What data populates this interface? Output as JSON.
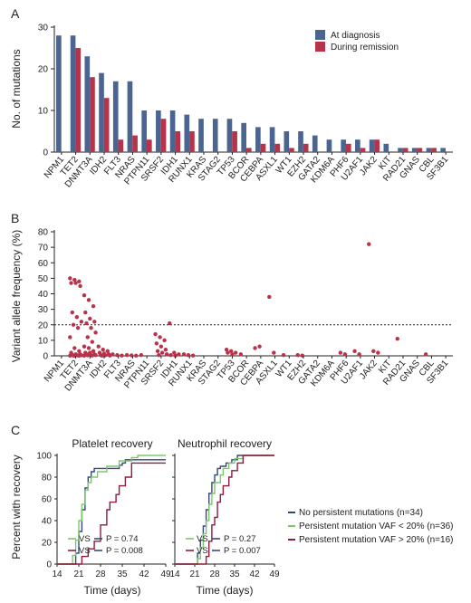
{
  "chart_data": [
    {
      "type": "bar",
      "panel_label": "A",
      "ylabel": "No. of mutations",
      "ylim": [
        0,
        30
      ],
      "yticks": [
        0,
        10,
        20,
        30
      ],
      "categories": [
        "NPM1",
        "TET2",
        "DNMT3A",
        "IDH2",
        "FLT3",
        "NRAS",
        "PTPN11",
        "SRSF2",
        "IDH1",
        "RUNX1",
        "KRAS",
        "STAG2",
        "TP53",
        "BCOR",
        "CEBPA",
        "ASXL1",
        "WT1",
        "EZH2",
        "GATA2",
        "KDM6A",
        "PHF6",
        "U2AF1",
        "JAK2",
        "KIT",
        "RAD21",
        "GNAS",
        "CBL",
        "SF3B1"
      ],
      "series": [
        {
          "name": "At diagnosis",
          "color": "#4a6590",
          "values": [
            28,
            28,
            23,
            19,
            17,
            17,
            10,
            10,
            10,
            9,
            8,
            8,
            8,
            7,
            6,
            6,
            5,
            5,
            4,
            3,
            3,
            3,
            3,
            2,
            1,
            1,
            1,
            1
          ]
        },
        {
          "name": "During remission",
          "color": "#b8334a",
          "values": [
            0,
            25,
            18,
            13,
            3,
            4,
            3,
            8,
            5,
            5,
            0,
            0,
            5,
            1,
            2,
            2,
            1,
            2,
            0,
            0,
            2,
            1,
            3,
            0,
            1,
            1,
            1,
            0
          ]
        }
      ],
      "legend_position": "top-right"
    },
    {
      "type": "scatter",
      "panel_label": "B",
      "ylabel": "Variant allele frequency (%)",
      "ylim": [
        0,
        80
      ],
      "yticks": [
        0,
        10,
        20,
        30,
        40,
        50,
        60,
        70,
        80
      ],
      "threshold": 20,
      "color": "#b8334a",
      "categories": [
        "NPM1",
        "TET2",
        "DNMT3A",
        "IDH2",
        "FLT3",
        "NRAS",
        "PTPN11",
        "SRSF2",
        "IDH1",
        "RUNX1",
        "KRAS",
        "STAG2",
        "TP53",
        "BCOR",
        "CEBPA",
        "ASXL1",
        "WT1",
        "EZH2",
        "GATA2",
        "KDM6A",
        "PHF6",
        "U2AF1",
        "JAK2",
        "KIT",
        "RAD21",
        "GNAS",
        "CBL",
        "SF3B1"
      ],
      "points": [
        {
          "cat": "TET2",
          "values": [
            50,
            49,
            48,
            47,
            47,
            45,
            28,
            25,
            22,
            20,
            18,
            12,
            5,
            3,
            2,
            1,
            1,
            0.5,
            0.5,
            0.3,
            0.2,
            0.2,
            0.1,
            0.1,
            0.1
          ]
        },
        {
          "cat": "DNMT3A",
          "values": [
            39,
            36,
            32,
            28,
            24,
            22,
            21,
            18,
            15,
            12,
            9,
            6,
            5,
            3,
            2,
            2,
            1,
            1,
            0.5,
            0.5,
            0.3,
            0.2,
            0.1
          ]
        },
        {
          "cat": "IDH2",
          "values": [
            6,
            4,
            3,
            2,
            1.5,
            1,
            0.5,
            0.3,
            0.2,
            0.1
          ]
        },
        {
          "cat": "FLT3",
          "values": [
            1,
            0.5,
            0.2
          ]
        },
        {
          "cat": "NRAS",
          "values": [
            0.5,
            0.3,
            0.1
          ]
        },
        {
          "cat": "PTPN11",
          "values": [
            0.5
          ]
        },
        {
          "cat": "SRSF2",
          "values": [
            14,
            12,
            10,
            8,
            6,
            4,
            3,
            2,
            1,
            0.5
          ]
        },
        {
          "cat": "IDH1",
          "values": [
            21,
            2,
            1,
            0.5,
            0.2
          ]
        },
        {
          "cat": "RUNX1",
          "values": [
            1,
            0.5,
            0.2
          ]
        },
        {
          "cat": "TP53",
          "values": [
            4,
            3,
            2,
            2,
            1
          ]
        },
        {
          "cat": "BCOR",
          "values": [
            1
          ]
        },
        {
          "cat": "CEBPA",
          "values": [
            5,
            6
          ]
        },
        {
          "cat": "ASXL1",
          "values": [
            38,
            2
          ]
        },
        {
          "cat": "WT1",
          "values": [
            0.5
          ]
        },
        {
          "cat": "EZH2",
          "values": [
            0.5,
            0.2
          ]
        },
        {
          "cat": "PHF6",
          "values": [
            2,
            1
          ]
        },
        {
          "cat": "U2AF1",
          "values": [
            3,
            1
          ]
        },
        {
          "cat": "JAK2",
          "values": [
            72,
            3,
            2
          ]
        },
        {
          "cat": "RAD21",
          "values": [
            11
          ]
        },
        {
          "cat": "CBL",
          "values": [
            1
          ]
        }
      ]
    },
    {
      "type": "line",
      "panel_label": "C",
      "title": "Platelet recovery",
      "xlabel": "Time (days)",
      "ylabel": "Percent with recovery",
      "xlim": [
        14,
        49
      ],
      "ylim": [
        0,
        100
      ],
      "xticks": [
        14,
        21,
        28,
        35,
        42,
        49
      ],
      "yticks": [
        0,
        20,
        40,
        60,
        80,
        100
      ],
      "series": [
        {
          "name": "No persistent mutations (n=34)",
          "color": "#35477d",
          "points": [
            [
              14,
              0
            ],
            [
              19,
              0
            ],
            [
              20,
              10
            ],
            [
              21,
              30
            ],
            [
              22,
              50
            ],
            [
              23,
              70
            ],
            [
              24,
              80
            ],
            [
              25,
              85
            ],
            [
              26,
              88
            ],
            [
              32,
              88
            ],
            [
              34,
              91
            ],
            [
              35,
              93
            ],
            [
              36,
              96
            ],
            [
              49,
              96
            ]
          ]
        },
        {
          "name": "Persistent mutation VAF < 20% (n=36)",
          "color": "#7bc86c",
          "points": [
            [
              14,
              0
            ],
            [
              18,
              0
            ],
            [
              19,
              8
            ],
            [
              20,
              22
            ],
            [
              21,
              40
            ],
            [
              22,
              55
            ],
            [
              23,
              68
            ],
            [
              24,
              75
            ],
            [
              25,
              80
            ],
            [
              27,
              85
            ],
            [
              30,
              90
            ],
            [
              34,
              95
            ],
            [
              38,
              98
            ],
            [
              40,
              100
            ],
            [
              49,
              100
            ]
          ]
        },
        {
          "name": "Persistent mutation VAF > 20% (n=16)",
          "color": "#8e1d3c",
          "points": [
            [
              14,
              0
            ],
            [
              21,
              0
            ],
            [
              22,
              7
            ],
            [
              24,
              14
            ],
            [
              26,
              21
            ],
            [
              28,
              36
            ],
            [
              30,
              50
            ],
            [
              31,
              57
            ],
            [
              33,
              64
            ],
            [
              34,
              72
            ],
            [
              36,
              80
            ],
            [
              38,
              93
            ],
            [
              49,
              93
            ]
          ]
        }
      ],
      "annotations": [
        {
          "text_vs": "VS",
          "text_p": "P = 0.74",
          "color_a": "#7bc86c",
          "color_b": "#35477d"
        },
        {
          "text_vs": "VS",
          "text_p": "P = 0.008",
          "color_a": "#8e1d3c",
          "color_b": "#35477d"
        }
      ]
    },
    {
      "type": "line",
      "panel_label": "",
      "title": "Neutrophil recovery",
      "xlabel": "Time (days)",
      "xlim": [
        14,
        49
      ],
      "ylim": [
        0,
        100
      ],
      "xticks": [
        14,
        21,
        28,
        35,
        42,
        49
      ],
      "yticks": [
        0,
        20,
        40,
        60,
        80,
        100
      ],
      "series": [
        {
          "name": "No persistent mutations (n=34)",
          "color": "#35477d",
          "points": [
            [
              14,
              0
            ],
            [
              21,
              0
            ],
            [
              22,
              10
            ],
            [
              23,
              22
            ],
            [
              24,
              35
            ],
            [
              25,
              50
            ],
            [
              26,
              65
            ],
            [
              27,
              75
            ],
            [
              28,
              82
            ],
            [
              29,
              88
            ],
            [
              30,
              90
            ],
            [
              32,
              93
            ],
            [
              34,
              96
            ],
            [
              36,
              100
            ],
            [
              49,
              100
            ]
          ]
        },
        {
          "name": "Persistent mutation VAF < 20% (n=36)",
          "color": "#7bc86c",
          "points": [
            [
              14,
              0
            ],
            [
              21,
              0
            ],
            [
              22,
              5
            ],
            [
              23,
              15
            ],
            [
              24,
              28
            ],
            [
              25,
              40
            ],
            [
              26,
              55
            ],
            [
              27,
              65
            ],
            [
              28,
              75
            ],
            [
              30,
              82
            ],
            [
              31,
              88
            ],
            [
              33,
              93
            ],
            [
              35,
              97
            ],
            [
              38,
              100
            ],
            [
              49,
              100
            ]
          ]
        },
        {
          "name": "Persistent mutation VAF > 20% (n=16)",
          "color": "#8e1d3c",
          "points": [
            [
              14,
              0
            ],
            [
              24,
              0
            ],
            [
              25,
              7
            ],
            [
              26,
              21
            ],
            [
              27,
              36
            ],
            [
              28,
              43
            ],
            [
              29,
              57
            ],
            [
              30,
              64
            ],
            [
              31,
              72
            ],
            [
              33,
              80
            ],
            [
              34,
              86
            ],
            [
              36,
              93
            ],
            [
              38,
              100
            ],
            [
              49,
              100
            ]
          ]
        }
      ],
      "annotations": [
        {
          "text_vs": "VS",
          "text_p": "P = 0.27",
          "color_a": "#7bc86c",
          "color_b": "#35477d"
        },
        {
          "text_vs": "VS",
          "text_p": "P = 0.007",
          "color_a": "#8e1d3c",
          "color_b": "#35477d"
        }
      ]
    }
  ]
}
